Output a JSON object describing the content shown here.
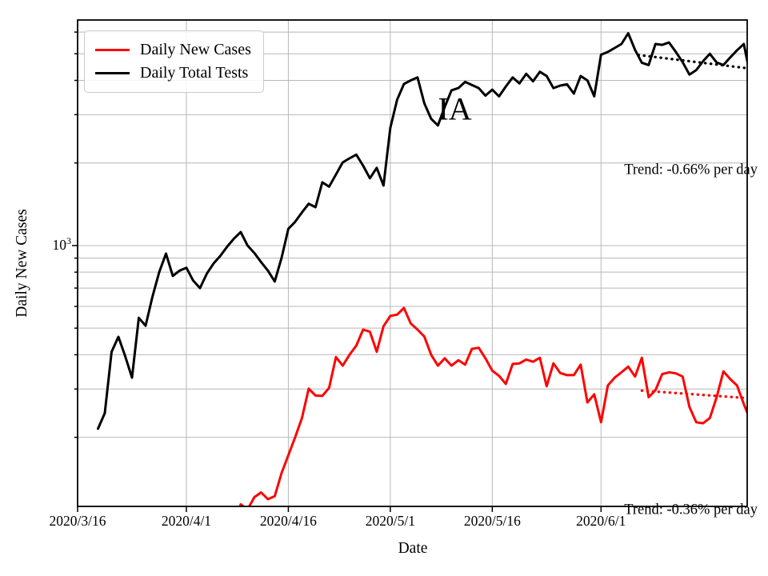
{
  "chart_data": {
    "type": "line",
    "xlabel": "Date",
    "ylabel": "Daily New Cases",
    "y_scale": "log",
    "ylim": [
      112,
      6640
    ],
    "x_range_days": [
      0,
      98.5
    ],
    "start_day": 3,
    "grid": "both",
    "grid_color": "#b8b8b8",
    "legend_position": "upper-left",
    "x_tick_labels": [
      "2020/3/16",
      "2020/4/1",
      "2020/4/16",
      "2020/5/1",
      "2020/5/16",
      "2020/6/1"
    ],
    "x_tick_days": [
      0,
      16,
      31,
      46,
      61,
      77
    ],
    "y_major_tick": {
      "base": "10",
      "exp": "3",
      "value": 1000
    },
    "y_gridlines": [
      200,
      300,
      400,
      500,
      600,
      700,
      800,
      900,
      1000,
      2000,
      3000,
      4000,
      5000,
      6000
    ],
    "dates": [
      "3/19",
      "3/20",
      "3/21",
      "3/22",
      "3/23",
      "3/24",
      "3/25",
      "3/26",
      "3/27",
      "3/28",
      "3/29",
      "3/30",
      "3/31",
      "4/1",
      "4/2",
      "4/3",
      "4/4",
      "4/5",
      "4/6",
      "4/7",
      "4/8",
      "4/9",
      "4/10",
      "4/11",
      "4/12",
      "4/13",
      "4/14",
      "4/15",
      "4/16",
      "4/17",
      "4/18",
      "4/19",
      "4/20",
      "4/21",
      "4/22",
      "4/23",
      "4/24",
      "4/25",
      "4/26",
      "4/27",
      "4/28",
      "4/29",
      "4/30",
      "5/1",
      "5/2",
      "5/3",
      "5/4",
      "5/5",
      "5/6",
      "5/7",
      "5/8",
      "5/9",
      "5/10",
      "5/11",
      "5/12",
      "5/13",
      "5/14",
      "5/15",
      "5/16",
      "5/17",
      "5/18",
      "5/19",
      "5/20",
      "5/21",
      "5/22",
      "5/23",
      "5/24",
      "5/25",
      "5/26",
      "5/27",
      "5/28",
      "5/29",
      "5/30",
      "5/31",
      "6/1",
      "6/2",
      "6/3",
      "6/4",
      "6/5",
      "6/6",
      "6/7",
      "6/8",
      "6/9",
      "6/10",
      "6/11",
      "6/12",
      "6/13",
      "6/14",
      "6/15",
      "6/16",
      "6/17",
      "6/18",
      "6/19",
      "6/20",
      "6/21",
      "6/22",
      "6/23"
    ],
    "series": [
      {
        "name": "Daily New Cases",
        "color": "#ff0000",
        "values": [
          null,
          null,
          null,
          null,
          null,
          null,
          null,
          null,
          null,
          null,
          null,
          null,
          null,
          null,
          null,
          null,
          null,
          null,
          null,
          null,
          95,
          114,
          109,
          121,
          126,
          119,
          122,
          148,
          172,
          200,
          235,
          301,
          284,
          283,
          303,
          392,
          365,
          400,
          432,
          494,
          485,
          410,
          508,
          554,
          560,
          592,
          520,
          494,
          466,
          400,
          365,
          388,
          365,
          382,
          368,
          420,
          424,
          388,
          350,
          335,
          313,
          370,
          372,
          384,
          377,
          390,
          307,
          372,
          343,
          337,
          337,
          368,
          268,
          287,
          227,
          309,
          330,
          345,
          362,
          333,
          390,
          280,
          297,
          340,
          345,
          342,
          333,
          258,
          227,
          225,
          235,
          280,
          348,
          326,
          309,
          264,
          230
        ]
      },
      {
        "name": "Daily Total Tests",
        "color": "#000000",
        "values": [
          215,
          245,
          410,
          465,
          395,
          330,
          545,
          510,
          650,
          800,
          935,
          775,
          810,
          830,
          745,
          700,
          790,
          860,
          917,
          990,
          1060,
          1120,
          1000,
          940,
          870,
          810,
          740,
          900,
          1150,
          1220,
          1320,
          1420,
          1380,
          1700,
          1640,
          1815,
          2010,
          2080,
          2145,
          1955,
          1760,
          1920,
          1655,
          2685,
          3400,
          3880,
          4000,
          4100,
          3300,
          2900,
          2740,
          3200,
          3680,
          3750,
          3950,
          3850,
          3750,
          3520,
          3700,
          3500,
          3800,
          4100,
          3900,
          4230,
          3970,
          4300,
          4150,
          3750,
          3830,
          3870,
          3580,
          4150,
          4000,
          3500,
          4960,
          5080,
          5250,
          5430,
          5940,
          5170,
          4640,
          4550,
          5430,
          5390,
          5500,
          5080,
          4660,
          4200,
          4360,
          4700,
          5000,
          4650,
          4550,
          4850,
          5150,
          5430,
          4100
        ]
      }
    ],
    "trends": [
      {
        "series": "Daily Total Tests",
        "color": "#000000",
        "label": "Trend: -0.66% per day",
        "start_day": 82.5,
        "start_value": 4950,
        "end_day": 98.5,
        "end_value": 4430,
        "label_day": 80.4,
        "label_value": 1880
      },
      {
        "series": "Daily New Cases",
        "color": "#ff0000",
        "label": "Trend: -0.36% per day",
        "start_day": 83,
        "start_value": 296,
        "end_day": 98.5,
        "end_value": 278,
        "label_day": 80.4,
        "label_value": 108
      }
    ],
    "annotations": [
      {
        "text": "IA",
        "day": 55.5,
        "value": 3150
      }
    ]
  }
}
